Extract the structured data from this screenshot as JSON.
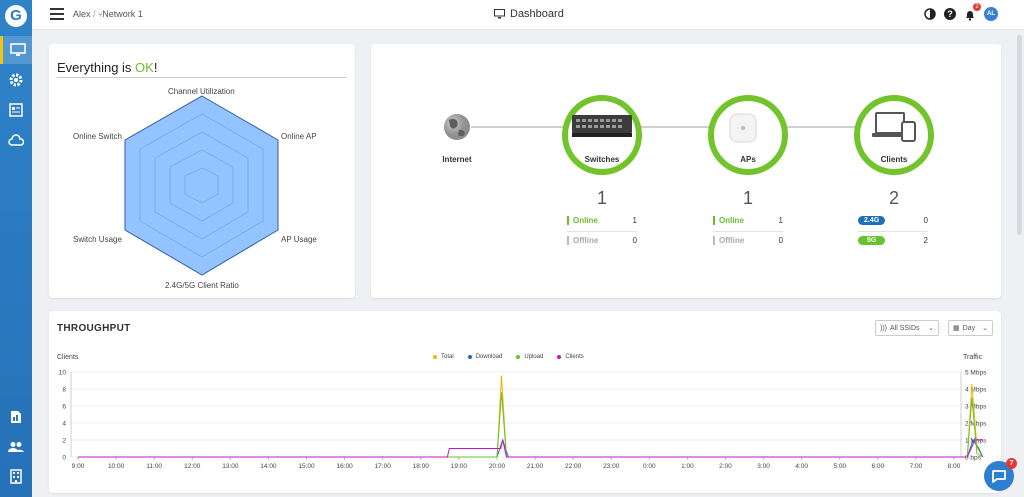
{
  "topbar": {
    "breadcrumb_user": "Alex",
    "breadcrumb_sep": "/",
    "breadcrumb_network": "Network 1",
    "page_title": "Dashboard",
    "notification_count": "2",
    "avatar_initials": "AL"
  },
  "sidebar": {
    "logo": "G",
    "items": [
      "monitor",
      "settings",
      "reports",
      "cloud"
    ],
    "bottom_items": [
      "document",
      "users",
      "building"
    ]
  },
  "health": {
    "title_prefix": "Everything is ",
    "title_ok": "OK",
    "title_suffix": "!",
    "axes": [
      "Channel Utilization",
      "Online AP",
      "AP Usage",
      "2.4G/5G Client Ratio",
      "Switch Usage",
      "Online Switch"
    ]
  },
  "topology": {
    "internet_label": "Internet",
    "switches": {
      "label": "Switches",
      "count": "1",
      "online_label": "Online",
      "online": "1",
      "offline_label": "Offline",
      "offline": "0"
    },
    "aps": {
      "label": "APs",
      "count": "1",
      "online_label": "Online",
      "online": "1",
      "offline_label": "Offline",
      "offline": "0"
    },
    "clients": {
      "label": "Clients",
      "count": "2",
      "band1_label": "2.4G",
      "band1": "0",
      "band2_label": "5G",
      "band2": "2"
    }
  },
  "throughput": {
    "title": "THROUGHPUT",
    "ssid_filter": "All SSIDs",
    "range_filter": "Day",
    "left_axis_title": "Clients",
    "right_axis_title": "Traffic",
    "left_ticks": [
      "10",
      "8",
      "6",
      "4",
      "2",
      "0"
    ],
    "right_ticks": [
      "5 Mbps",
      "4 Mbps",
      "3 Mbps",
      "2 Mbps",
      "1 Mbps",
      "0 bps"
    ],
    "legend": [
      {
        "name": "Total",
        "color": "#f4b400"
      },
      {
        "name": "Download",
        "color": "#1e6fb7"
      },
      {
        "name": "Upload",
        "color": "#66c22e"
      },
      {
        "name": "Clients",
        "color": "#c218c9"
      }
    ],
    "x_labels": [
      "9:00",
      "10:00",
      "11:00",
      "12:00",
      "13:00",
      "14:00",
      "15:00",
      "16:00",
      "17:00",
      "18:00",
      "19:00",
      "20:00",
      "21:00",
      "22:00",
      "23:00",
      "0:00",
      "1:00",
      "2:00",
      "3:00",
      "4:00",
      "5:00",
      "6:00",
      "7:00",
      "8:00"
    ]
  },
  "chart_data": {
    "type": "line",
    "title": "THROUGHPUT",
    "xlabel": "",
    "ylabel": "Clients",
    "ylabel_right": "Traffic",
    "ylim": [
      0,
      10
    ],
    "ylim_right_mbps": [
      0,
      5
    ],
    "x": [
      "9:00",
      "10:00",
      "11:00",
      "12:00",
      "13:00",
      "14:00",
      "15:00",
      "16:00",
      "17:00",
      "18:00",
      "19:00",
      "20:00",
      "21:00",
      "22:00",
      "23:00",
      "0:00",
      "1:00",
      "2:00",
      "3:00",
      "4:00",
      "5:00",
      "6:00",
      "7:00",
      "8:00"
    ],
    "series": [
      {
        "name": "Total",
        "axis": "right",
        "unit": "Mbps",
        "points": [
          [
            0,
            0
          ],
          [
            11.0,
            0
          ],
          [
            11.12,
            4.8
          ],
          [
            11.25,
            0
          ],
          [
            23.35,
            0
          ],
          [
            23.47,
            4.3
          ],
          [
            23.6,
            0.6
          ],
          [
            23.75,
            0
          ]
        ]
      },
      {
        "name": "Download",
        "axis": "right",
        "unit": "Mbps",
        "points": [
          [
            0,
            0
          ],
          [
            11.0,
            0
          ],
          [
            11.15,
            1.0
          ],
          [
            11.3,
            0
          ],
          [
            23.35,
            0
          ],
          [
            23.5,
            1.0
          ],
          [
            23.65,
            0.5
          ],
          [
            23.75,
            0
          ]
        ]
      },
      {
        "name": "Upload",
        "axis": "right",
        "unit": "Mbps",
        "points": [
          [
            0,
            0
          ],
          [
            11.0,
            0
          ],
          [
            11.12,
            3.8
          ],
          [
            11.25,
            0
          ],
          [
            23.35,
            0
          ],
          [
            23.47,
            3.5
          ],
          [
            23.6,
            0.2
          ],
          [
            23.75,
            0
          ]
        ]
      },
      {
        "name": "Clients",
        "axis": "left",
        "unit": "clients",
        "points": [
          [
            0,
            0
          ],
          [
            9.7,
            0
          ],
          [
            9.75,
            1
          ],
          [
            11.1,
            1
          ],
          [
            11.15,
            2
          ],
          [
            11.25,
            0
          ],
          [
            23.35,
            0
          ],
          [
            23.45,
            1
          ],
          [
            23.55,
            2
          ],
          [
            23.75,
            2
          ]
        ]
      }
    ]
  }
}
